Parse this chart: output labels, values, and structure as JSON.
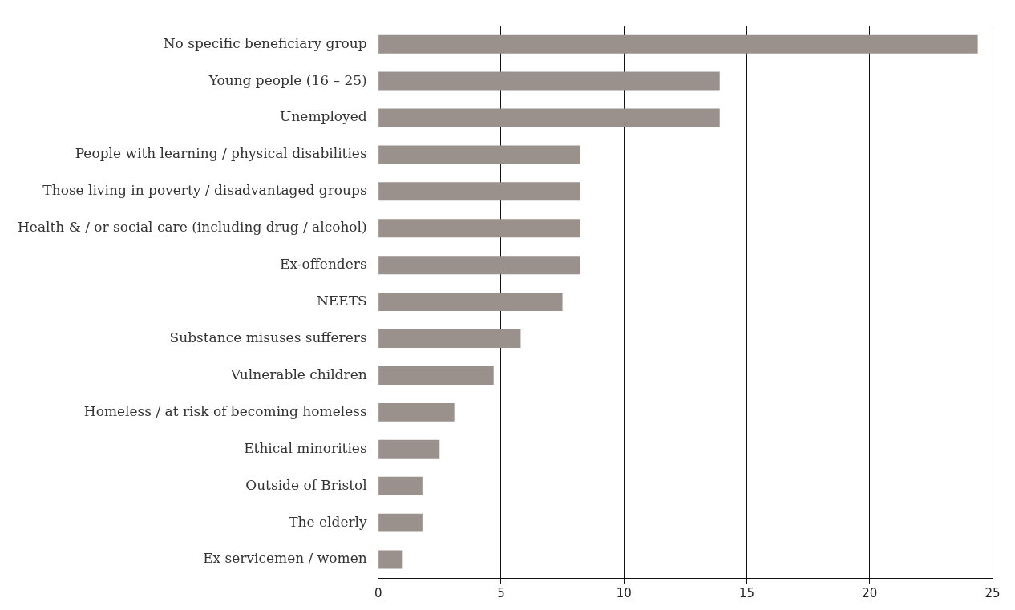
{
  "chart_data": {
    "type": "bar",
    "orientation": "horizontal",
    "categories": [
      "No specific beneficiary group",
      "Young people (16 – 25)",
      "Unemployed",
      "People with learning / physical disabilities",
      "Those living in poverty / disadvantaged groups",
      "Health & / or social care (including drug / alcohol)",
      "Ex-offenders",
      "NEETS",
      "Substance misuses sufferers",
      "Vulnerable children",
      "Homeless / at risk of becoming homeless",
      "Ethical minorities",
      "Outside of Bristol",
      "The elderly",
      "Ex servicemen / women"
    ],
    "values": [
      24.4,
      13.9,
      13.9,
      8.2,
      8.2,
      8.2,
      8.2,
      7.5,
      5.8,
      4.7,
      3.1,
      2.5,
      1.8,
      1.8,
      1.0
    ],
    "color": "#9a918c",
    "xlim": [
      0,
      25
    ],
    "xticks": [
      0,
      5,
      10,
      15,
      20,
      25
    ],
    "grid": "x",
    "legend": false
  }
}
